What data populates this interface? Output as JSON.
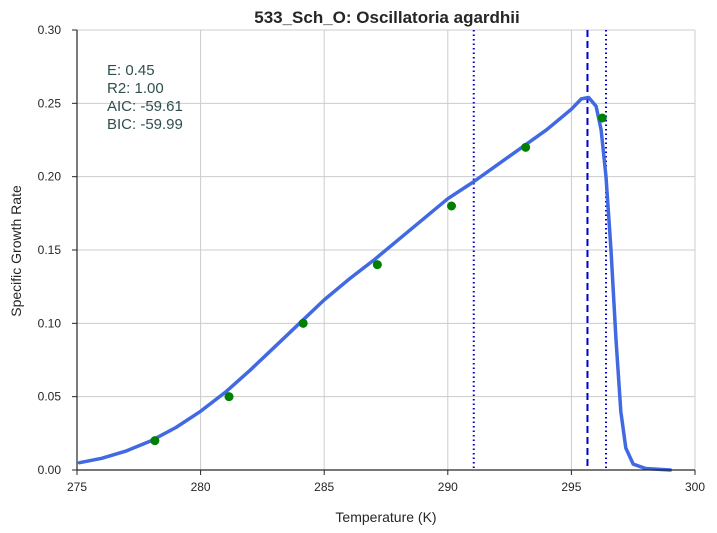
{
  "chart_data": {
    "type": "line",
    "title": "533_Sch_O: Oscillatoria agardhii",
    "xlabel": "Temperature (K)",
    "ylabel": "Specific Growth Rate",
    "xlim": [
      275,
      300
    ],
    "ylim": [
      0,
      0.3
    ],
    "xticks": [
      275,
      280,
      285,
      290,
      295,
      300
    ],
    "xtick_labels": [
      "275",
      "280",
      "285",
      "290",
      "295",
      "300"
    ],
    "yticks": [
      0,
      0.05,
      0.1,
      0.15,
      0.2,
      0.25,
      0.3
    ],
    "ytick_labels": [
      "0.00",
      "0.05",
      "0.10",
      "0.15",
      "0.20",
      "0.25",
      "0.30"
    ],
    "grid": true,
    "colors": {
      "fit": "#4169e1",
      "points": "#008000",
      "vlines": "#0000cd",
      "stats_text": "#2f4f4f"
    },
    "stats": [
      "E:  0.45",
      "R2:  1.00",
      "AIC: -59.61",
      "BIC: -59.99"
    ],
    "series": [
      {
        "kind": "line",
        "x": [
          275.1,
          276,
          277,
          278,
          279,
          280,
          281,
          282,
          283,
          284,
          285,
          286,
          287,
          288,
          289,
          290,
          291,
          292,
          293,
          294,
          295,
          295.4,
          295.7,
          296.0,
          296.2,
          296.4,
          296.6,
          296.8,
          297.0,
          297.2,
          297.5,
          298,
          299
        ],
        "y": [
          0.005,
          0.008,
          0.013,
          0.02,
          0.029,
          0.04,
          0.053,
          0.068,
          0.084,
          0.1,
          0.116,
          0.13,
          0.143,
          0.157,
          0.171,
          0.185,
          0.196,
          0.208,
          0.22,
          0.232,
          0.246,
          0.253,
          0.254,
          0.248,
          0.232,
          0.2,
          0.15,
          0.09,
          0.04,
          0.015,
          0.004,
          0.001,
          0.0
        ]
      },
      {
        "kind": "points",
        "x": [
          278.15,
          281.15,
          284.15,
          287.15,
          290.15,
          293.15,
          296.25
        ],
        "y": [
          0.02,
          0.05,
          0.1,
          0.14,
          0.18,
          0.22,
          0.24
        ]
      }
    ],
    "vlines": [
      {
        "x": 291.05,
        "style": "dotted"
      },
      {
        "x": 295.65,
        "style": "dashed"
      },
      {
        "x": 296.4,
        "style": "dotted"
      }
    ]
  }
}
